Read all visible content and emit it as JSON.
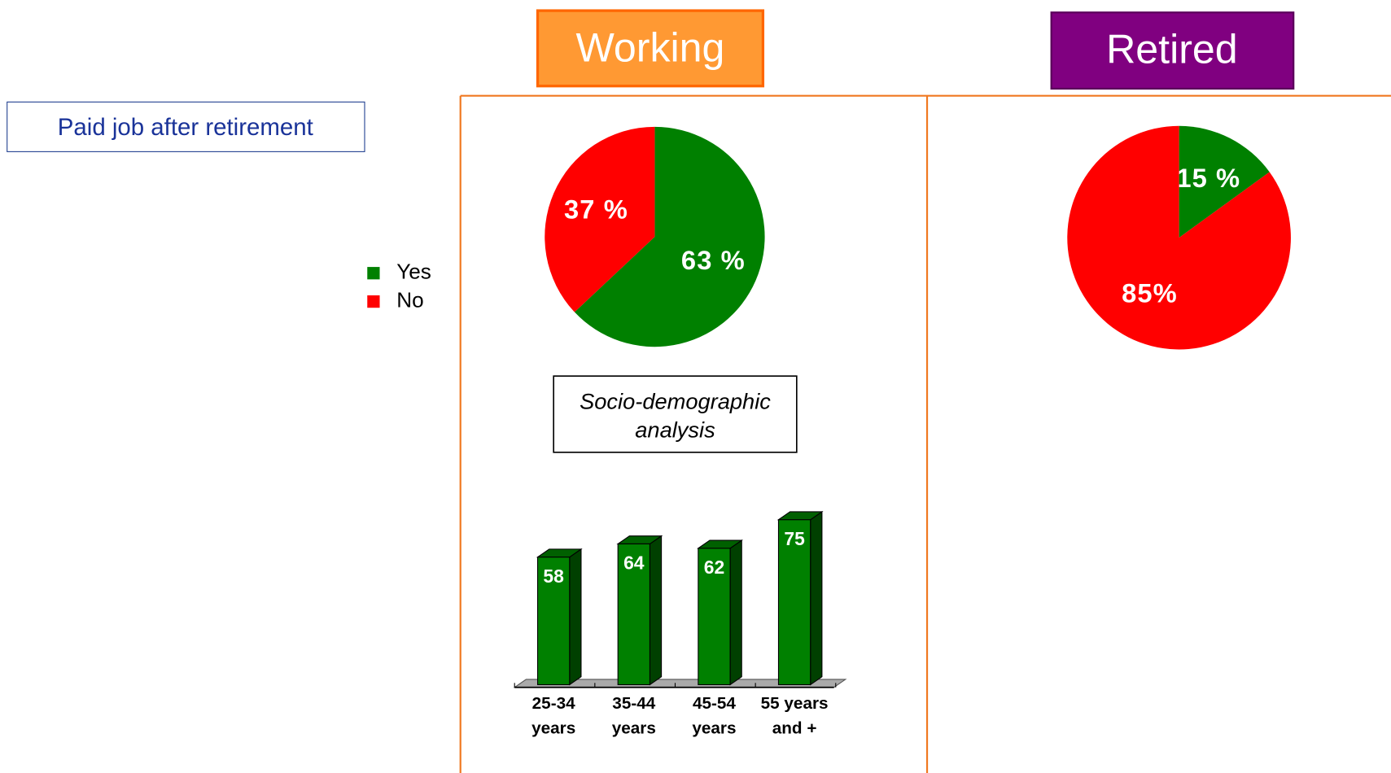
{
  "title": "Paid job after retirement",
  "chart_data": [
    {
      "type": "pie",
      "title": "Working",
      "categories": [
        "Yes",
        "No"
      ],
      "values": [
        63,
        37
      ],
      "value_labels": [
        "63 %",
        "37 %"
      ],
      "colors": [
        "#008000",
        "#ff0000"
      ]
    },
    {
      "type": "pie",
      "title": "Retired",
      "categories": [
        "Yes",
        "No"
      ],
      "values": [
        15,
        85
      ],
      "value_labels": [
        "15 %",
        "85%"
      ],
      "colors": [
        "#008000",
        "#ff0000"
      ]
    },
    {
      "type": "bar",
      "title": "Socio-demographic analysis",
      "categories": [
        "25-34 years",
        "35-44 years",
        "45-54 years",
        "55 years and +"
      ],
      "values": [
        58,
        64,
        62,
        75
      ],
      "color": "#008000"
    }
  ]
}
